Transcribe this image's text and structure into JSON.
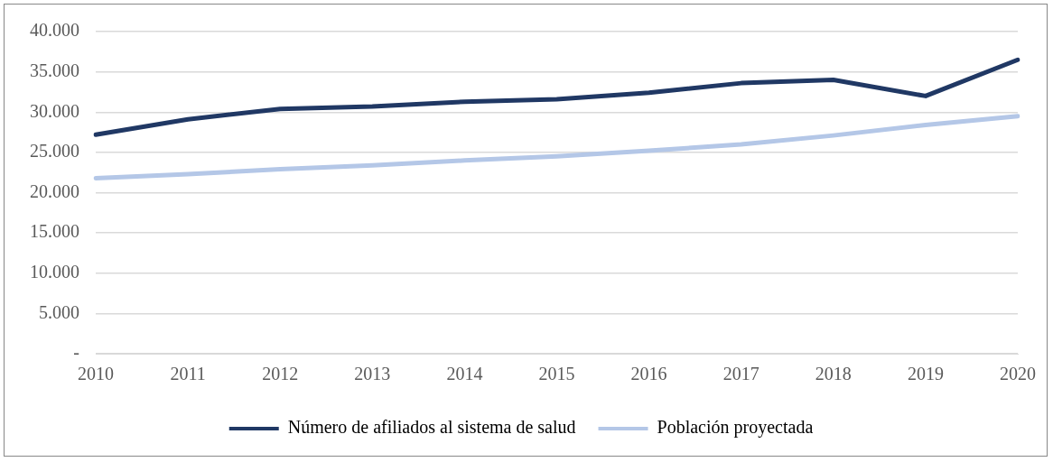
{
  "chart_data": {
    "type": "line",
    "categories": [
      "2010",
      "2011",
      "2012",
      "2013",
      "2014",
      "2015",
      "2016",
      "2017",
      "2018",
      "2019",
      "2020"
    ],
    "series": [
      {
        "name": "Número de afiliados al sistema de salud",
        "color": "#203864",
        "values": [
          27200,
          29100,
          30400,
          30700,
          31300,
          31600,
          32400,
          33600,
          34000,
          32000,
          36500
        ]
      },
      {
        "name": "Población proyectada",
        "color": "#b4c7e7",
        "values": [
          21800,
          22300,
          22900,
          23400,
          24000,
          24500,
          25200,
          26000,
          27100,
          28400,
          29500
        ]
      }
    ],
    "ylim": [
      0,
      40000
    ],
    "yticks": [
      {
        "value": 0,
        "label": "-"
      },
      {
        "value": 5000,
        "label": "5.000"
      },
      {
        "value": 10000,
        "label": "10.000"
      },
      {
        "value": 15000,
        "label": "15.000"
      },
      {
        "value": 20000,
        "label": "20.000"
      },
      {
        "value": 25000,
        "label": "25.000"
      },
      {
        "value": 30000,
        "label": "30.000"
      },
      {
        "value": 35000,
        "label": "35.000"
      },
      {
        "value": 40000,
        "label": "40.000"
      }
    ],
    "grid": "y",
    "legend": "bottom",
    "marker": "none",
    "line_style": "solid"
  }
}
